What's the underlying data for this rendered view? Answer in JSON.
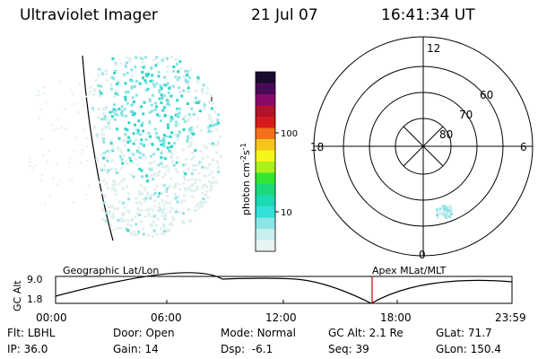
{
  "header": {
    "title": "Ultraviolet Imager",
    "date": "21 Jul 07",
    "time": "16:41:34 UT"
  },
  "colorbar": {
    "label_main": "photon cm",
    "label_sup1": "-2",
    "label_mid": "s",
    "label_sup2": "-1",
    "ticks": [
      "100",
      "10"
    ],
    "colors": [
      "#1a0a2e",
      "#4a0a55",
      "#8a0a6a",
      "#b3122b",
      "#d61a1a",
      "#f2701a",
      "#f7c41a",
      "#f5f51a",
      "#aaf01a",
      "#33e633",
      "#1ad97a",
      "#1ad9b3",
      "#33e0d9",
      "#8de6e6",
      "#c8eeee",
      "#e8f4f4"
    ]
  },
  "polar": {
    "mlt_labels": {
      "top": "12",
      "right": "6",
      "bottom": "0",
      "left": "18"
    },
    "lat_labels": [
      "60",
      "70",
      "80"
    ]
  },
  "timeline": {
    "left_header": "Geographic Lat/Lon",
    "right_header": "Apex MLat/MLT",
    "axis_label": "GC Alt",
    "y_ticks": [
      "9.0",
      "1.8"
    ],
    "x_ticks": [
      "00:00",
      "06:00",
      "12:00",
      "18:00",
      "23:59"
    ],
    "marker_time": "16:41:34"
  },
  "info": {
    "row1": [
      {
        "label": "Flt:",
        "value": "LBHL"
      },
      {
        "label": "Door:",
        "value": "Open"
      },
      {
        "label": "Mode:",
        "value": "Normal"
      },
      {
        "label": "GC Alt:",
        "value": "2.1 Re"
      },
      {
        "label": "GLat:",
        "value": "71.7"
      }
    ],
    "row2": [
      {
        "label": "IP:",
        "value": "36.0"
      },
      {
        "label": "Gain:",
        "value": "14"
      },
      {
        "label": "Dsp:",
        "value": "-6.1"
      },
      {
        "label": "Seq:",
        "value": "39"
      },
      {
        "label": "GLon:",
        "value": "150.4"
      }
    ]
  },
  "colors": {
    "aurora_pale": "#dff0ee",
    "aurora_cyan": "#8ee3e6",
    "aurora_bright": "#2fd6c8",
    "marker": "#cc0000"
  }
}
